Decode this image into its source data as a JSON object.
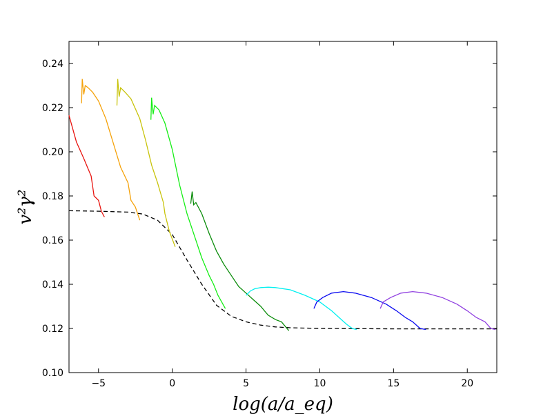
{
  "chart_data": {
    "type": "line",
    "xlabel": "log(a/a_eq)",
    "ylabel": "v²γ²",
    "xlim": [
      -7,
      22
    ],
    "ylim": [
      0.1,
      0.25
    ],
    "x_ticks": [
      -5,
      0,
      5,
      10,
      15,
      20
    ],
    "x_tick_labels": [
      "−5",
      "0",
      "5",
      "10",
      "15",
      "20"
    ],
    "y_ticks": [
      0.1,
      0.12,
      0.14,
      0.16,
      0.18,
      0.2,
      0.22,
      0.24
    ],
    "y_tick_labels": [
      "0.10",
      "0.12",
      "0.14",
      "0.16",
      "0.18",
      "0.20",
      "0.22",
      "0.24"
    ],
    "grid": false,
    "legend": "none",
    "series": [
      {
        "color": "#000000",
        "dashed": true,
        "points": [
          [
            -7,
            0.1733
          ],
          [
            -5,
            0.1731
          ],
          [
            -3,
            0.1727
          ],
          [
            -2,
            0.1718
          ],
          [
            -1,
            0.169
          ],
          [
            0,
            0.1625
          ],
          [
            1,
            0.151
          ],
          [
            2,
            0.14
          ],
          [
            3,
            0.1305
          ],
          [
            4,
            0.1255
          ],
          [
            5,
            0.123
          ],
          [
            6,
            0.1215
          ],
          [
            7,
            0.1207
          ],
          [
            8,
            0.1203
          ],
          [
            10,
            0.12
          ],
          [
            15,
            0.1198
          ],
          [
            22,
            0.1198
          ]
        ]
      },
      {
        "color": "#e8140f",
        "points": [
          [
            -7,
            0.2165
          ],
          [
            -6.5,
            0.2045
          ],
          [
            -6,
            0.197
          ],
          [
            -5.5,
            0.189
          ],
          [
            -5.3,
            0.18
          ],
          [
            -5,
            0.178
          ],
          [
            -4.8,
            0.173
          ],
          [
            -4.6,
            0.1705
          ]
        ]
      },
      {
        "color": "#f5a20a",
        "points": [
          [
            -6.15,
            0.222
          ],
          [
            -6.1,
            0.233
          ],
          [
            -6.0,
            0.226
          ],
          [
            -5.9,
            0.23
          ],
          [
            -5.7,
            0.229
          ],
          [
            -5.4,
            0.227
          ],
          [
            -5,
            0.223
          ],
          [
            -4.5,
            0.215
          ],
          [
            -4,
            0.204
          ],
          [
            -3.5,
            0.193
          ],
          [
            -3.0,
            0.186
          ],
          [
            -2.8,
            0.178
          ],
          [
            -2.5,
            0.175
          ],
          [
            -2.2,
            0.169
          ]
        ]
      },
      {
        "color": "#c8c30a",
        "points": [
          [
            -3.75,
            0.221
          ],
          [
            -3.7,
            0.233
          ],
          [
            -3.6,
            0.225
          ],
          [
            -3.5,
            0.229
          ],
          [
            -3.2,
            0.227
          ],
          [
            -2.8,
            0.224
          ],
          [
            -2.2,
            0.215
          ],
          [
            -1.8,
            0.205
          ],
          [
            -1.4,
            0.194
          ],
          [
            -1.0,
            0.186
          ],
          [
            -0.6,
            0.177
          ],
          [
            -0.5,
            0.172
          ],
          [
            -0.2,
            0.164
          ],
          [
            0.2,
            0.157
          ]
        ]
      },
      {
        "color": "#14ee14",
        "points": [
          [
            -1.45,
            0.2145
          ],
          [
            -1.4,
            0.2245
          ],
          [
            -1.3,
            0.217
          ],
          [
            -1.2,
            0.221
          ],
          [
            -0.9,
            0.219
          ],
          [
            -0.5,
            0.213
          ],
          [
            0,
            0.201
          ],
          [
            0.5,
            0.185
          ],
          [
            1.0,
            0.172
          ],
          [
            1.5,
            0.162
          ],
          [
            2.0,
            0.152
          ],
          [
            2.5,
            0.144
          ],
          [
            2.8,
            0.14
          ],
          [
            3.1,
            0.135
          ],
          [
            3.6,
            0.129
          ]
        ]
      },
      {
        "color": "#0a8c0a",
        "points": [
          [
            1.25,
            0.1765
          ],
          [
            1.35,
            0.182
          ],
          [
            1.45,
            0.176
          ],
          [
            1.6,
            0.177
          ],
          [
            2,
            0.172
          ],
          [
            2.5,
            0.163
          ],
          [
            3,
            0.155
          ],
          [
            3.5,
            0.149
          ],
          [
            4,
            0.144
          ],
          [
            4.5,
            0.139
          ],
          [
            5,
            0.136
          ],
          [
            5.5,
            0.133
          ],
          [
            6,
            0.13
          ],
          [
            6.5,
            0.126
          ],
          [
            7,
            0.124
          ],
          [
            7.4,
            0.123
          ],
          [
            7.9,
            0.119
          ]
        ]
      },
      {
        "color": "#00f0f0",
        "points": [
          [
            5.0,
            0.135
          ],
          [
            5.3,
            0.137
          ],
          [
            5.6,
            0.138
          ],
          [
            6.0,
            0.1385
          ],
          [
            6.5,
            0.1387
          ],
          [
            7.0,
            0.1385
          ],
          [
            8,
            0.1375
          ],
          [
            9,
            0.135
          ],
          [
            10,
            0.132
          ],
          [
            10.8,
            0.128
          ],
          [
            11.3,
            0.125
          ],
          [
            11.8,
            0.122
          ],
          [
            12.2,
            0.12
          ],
          [
            12.5,
            0.1195
          ]
        ]
      },
      {
        "color": "#0a0af0",
        "points": [
          [
            9.6,
            0.129
          ],
          [
            9.8,
            0.132
          ],
          [
            10.2,
            0.134
          ],
          [
            10.8,
            0.136
          ],
          [
            11.6,
            0.1367
          ],
          [
            12.4,
            0.136
          ],
          [
            13.5,
            0.134
          ],
          [
            14.5,
            0.131
          ],
          [
            15.2,
            0.128
          ],
          [
            15.8,
            0.125
          ],
          [
            16.3,
            0.123
          ],
          [
            16.8,
            0.12
          ],
          [
            17.2,
            0.1195
          ]
        ]
      },
      {
        "color": "#9040e0",
        "points": [
          [
            14.1,
            0.129
          ],
          [
            14.3,
            0.132
          ],
          [
            14.8,
            0.134
          ],
          [
            15.5,
            0.136
          ],
          [
            16.3,
            0.1367
          ],
          [
            17.2,
            0.136
          ],
          [
            18.3,
            0.134
          ],
          [
            19.3,
            0.131
          ],
          [
            20.0,
            0.128
          ],
          [
            20.6,
            0.125
          ],
          [
            21.2,
            0.123
          ],
          [
            21.6,
            0.12
          ],
          [
            21.9,
            0.1195
          ]
        ]
      }
    ]
  }
}
